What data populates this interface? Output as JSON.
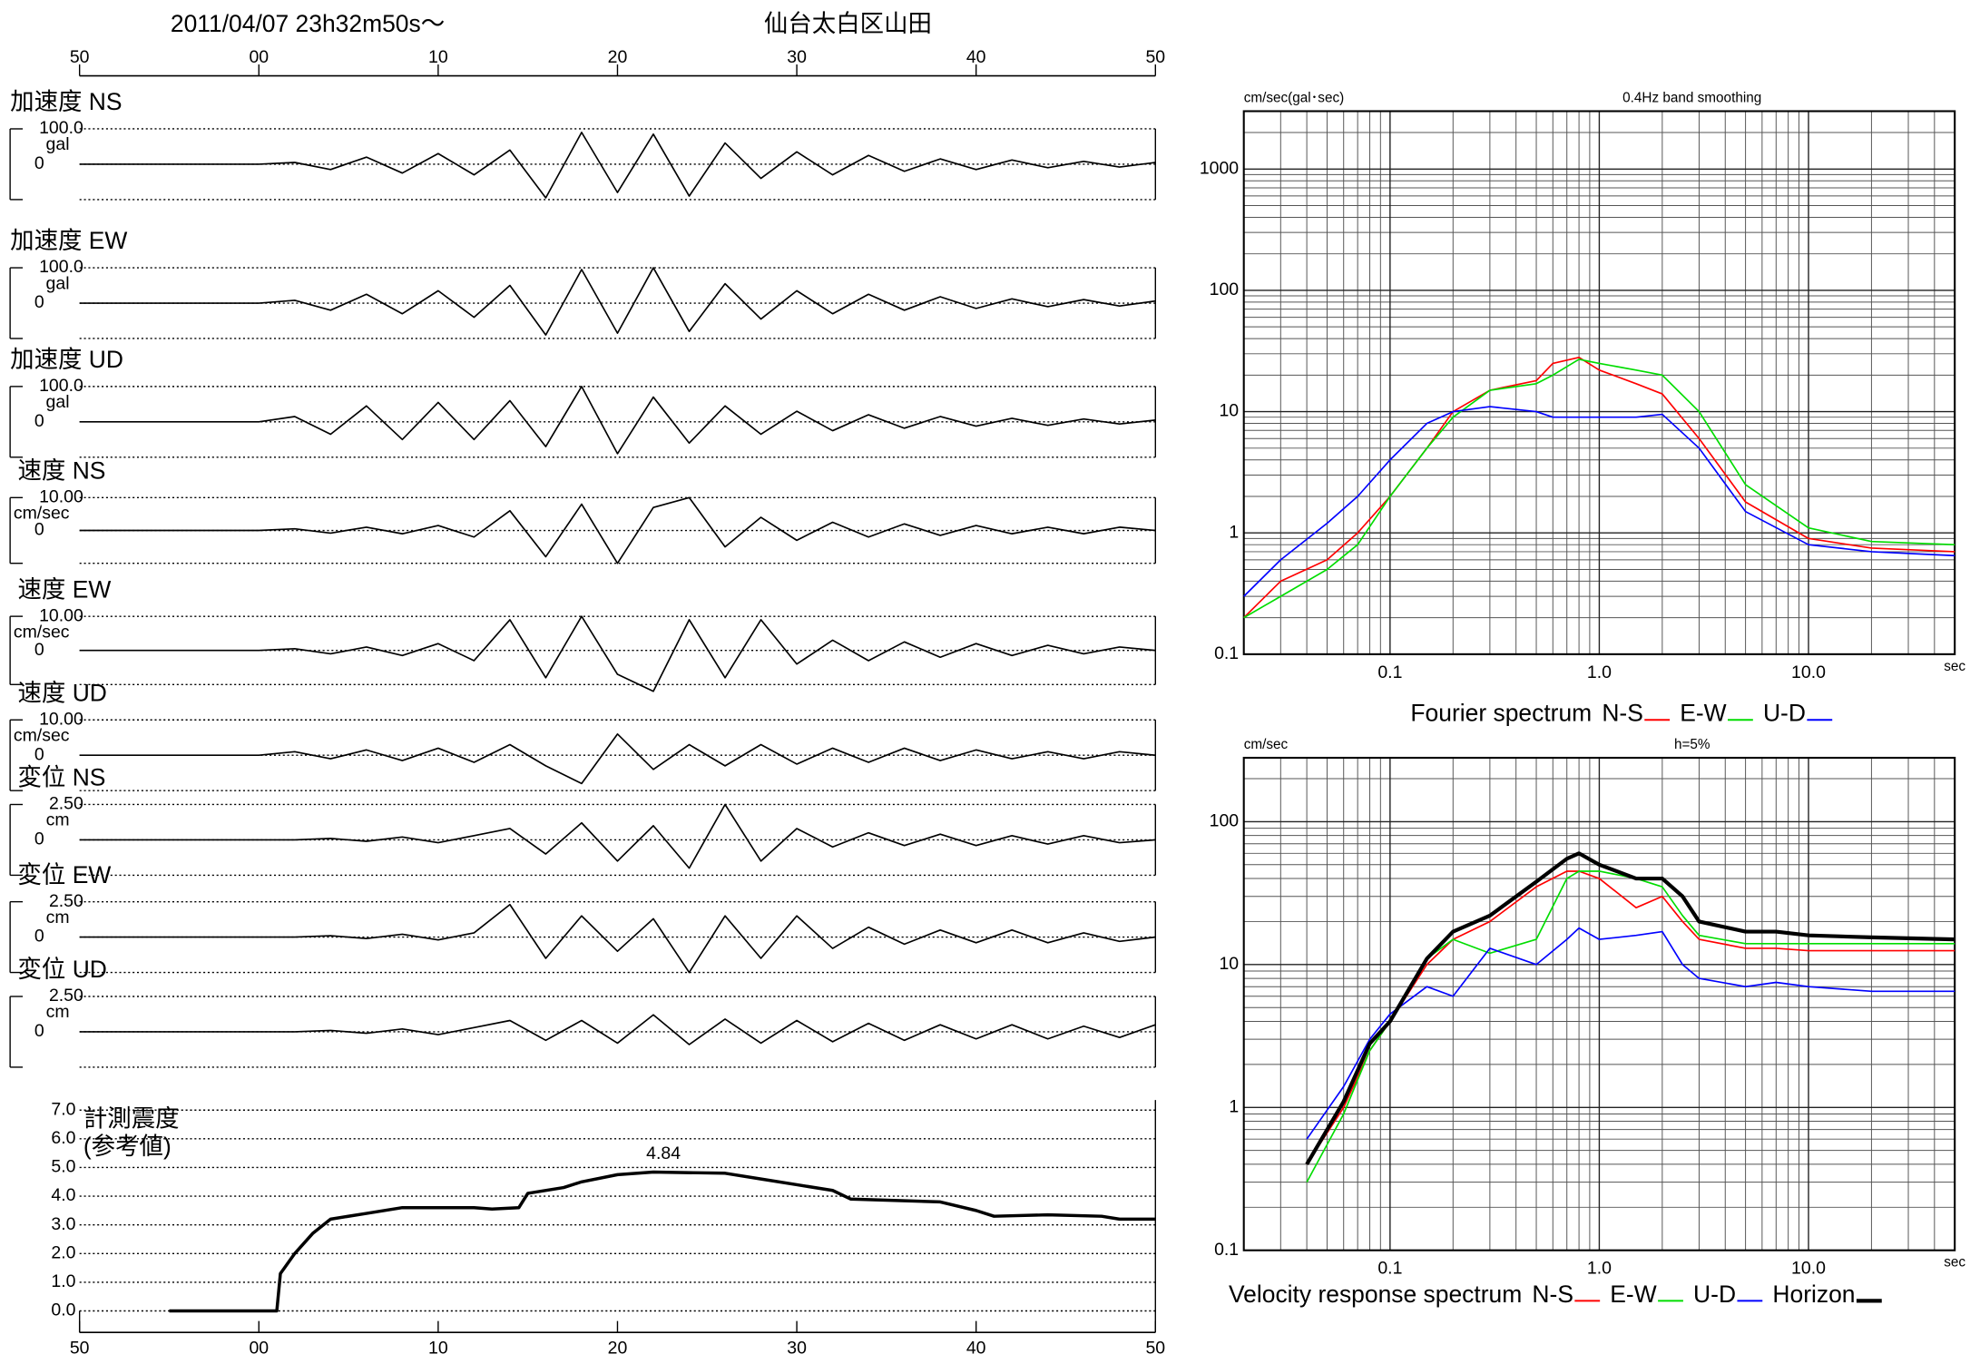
{
  "header": {
    "datetime": "2011/04/07  23h32m50s～",
    "station": "仙台太白区山田"
  },
  "chart_data": [
    {
      "type": "line",
      "title": "加速度 NS",
      "y_label": "gal",
      "xlim": [
        -10,
        50
      ],
      "xticks": [
        {
          "value": -10,
          "label": "50"
        },
        {
          "value": 0,
          "label": "00"
        },
        10,
        20,
        30,
        40,
        50
      ],
      "ylim": [
        -100,
        100
      ],
      "yticks": [
        {
          "value": 100,
          "label": "100.0"
        },
        0
      ],
      "color": "#000000",
      "x": [
        -10,
        -8,
        -6,
        -4,
        -2,
        0,
        2,
        4,
        6,
        8,
        10,
        12,
        14,
        16,
        18,
        20,
        22,
        24,
        26,
        28,
        30,
        32,
        34,
        36,
        38,
        40,
        42,
        44,
        46,
        48,
        50
      ],
      "values": [
        0,
        0,
        0,
        0,
        0,
        0,
        5,
        -15,
        20,
        -25,
        30,
        -30,
        40,
        -95,
        90,
        -80,
        85,
        -90,
        60,
        -40,
        35,
        -30,
        25,
        -20,
        15,
        -15,
        12,
        -10,
        8,
        -8,
        5
      ]
    },
    {
      "type": "line",
      "title": "加速度 EW",
      "y_label": "gal",
      "xlim": [
        -10,
        50
      ],
      "ylim": [
        -100,
        100
      ],
      "yticks": [
        {
          "value": 100,
          "label": "100.0"
        },
        0
      ],
      "color": "#000000",
      "x": [
        -10,
        -8,
        -6,
        -4,
        -2,
        0,
        2,
        4,
        6,
        8,
        10,
        12,
        14,
        16,
        18,
        20,
        22,
        24,
        26,
        28,
        30,
        32,
        34,
        36,
        38,
        40,
        42,
        44,
        46,
        48,
        50
      ],
      "values": [
        0,
        0,
        0,
        0,
        0,
        0,
        8,
        -20,
        25,
        -30,
        35,
        -40,
        50,
        -90,
        95,
        -85,
        100,
        -80,
        55,
        -45,
        35,
        -30,
        25,
        -20,
        18,
        -15,
        12,
        -10,
        10,
        -8,
        6
      ]
    },
    {
      "type": "line",
      "title": "加速度 UD",
      "y_label": "gal",
      "xlim": [
        -10,
        50
      ],
      "ylim": [
        -100,
        100
      ],
      "yticks": [
        {
          "value": 100,
          "label": "100.0"
        },
        0
      ],
      "color": "#000000",
      "x": [
        -10,
        -8,
        -6,
        -4,
        -2,
        0,
        2,
        4,
        6,
        8,
        10,
        12,
        14,
        16,
        18,
        20,
        22,
        24,
        26,
        28,
        30,
        32,
        34,
        36,
        38,
        40,
        42,
        44,
        46,
        48,
        50
      ],
      "values": [
        0,
        0,
        0,
        0,
        0,
        0,
        15,
        -35,
        45,
        -50,
        55,
        -50,
        60,
        -70,
        100,
        -90,
        70,
        -60,
        45,
        -35,
        30,
        -25,
        20,
        -18,
        15,
        -12,
        10,
        -10,
        8,
        -6,
        5
      ]
    },
    {
      "type": "line",
      "title": "速度 NS",
      "y_label": "cm/sec",
      "xlim": [
        -10,
        50
      ],
      "ylim": [
        -10,
        10
      ],
      "yticks": [
        {
          "value": 10,
          "label": "10.00"
        },
        0
      ],
      "color": "#000000",
      "x": [
        -10,
        -8,
        -6,
        -4,
        -2,
        0,
        2,
        4,
        6,
        8,
        10,
        12,
        14,
        16,
        18,
        20,
        22,
        24,
        26,
        28,
        30,
        32,
        34,
        36,
        38,
        40,
        42,
        44,
        46,
        48,
        50
      ],
      "values": [
        0,
        0,
        0,
        0,
        0,
        0,
        0.5,
        -0.8,
        1,
        -1,
        1.5,
        -2,
        6,
        -8,
        8,
        -10,
        7,
        10,
        -5,
        4,
        -3,
        2.5,
        -2,
        2,
        -1.5,
        1.5,
        -1,
        1,
        -1,
        1,
        0
      ]
    },
    {
      "type": "line",
      "title": "速度 EW",
      "y_label": "cm/sec",
      "xlim": [
        -10,
        50
      ],
      "ylim": [
        -10,
        10
      ],
      "yticks": [
        {
          "value": 10,
          "label": "10.00"
        },
        0
      ],
      "color": "#000000",
      "x": [
        -10,
        -8,
        -6,
        -4,
        -2,
        0,
        2,
        4,
        6,
        8,
        10,
        12,
        14,
        16,
        18,
        20,
        22,
        24,
        26,
        28,
        30,
        32,
        34,
        36,
        38,
        40,
        42,
        44,
        46,
        48,
        50
      ],
      "values": [
        0,
        0,
        0,
        0,
        0,
        0,
        0.5,
        -1,
        1,
        -1.5,
        2,
        -3,
        9,
        -8,
        10,
        -7,
        -12,
        9,
        -8,
        9,
        -4,
        3,
        -3,
        2.5,
        -2,
        2,
        -1.5,
        1.5,
        -1,
        1,
        0
      ]
    },
    {
      "type": "line",
      "title": "速度 UD",
      "y_label": "cm/sec",
      "xlim": [
        -10,
        50
      ],
      "ylim": [
        -10,
        10
      ],
      "yticks": [
        {
          "value": 10,
          "label": "10.00"
        },
        0
      ],
      "color": "#000000",
      "x": [
        -10,
        -8,
        -6,
        -4,
        -2,
        0,
        2,
        4,
        6,
        8,
        10,
        12,
        14,
        16,
        18,
        20,
        22,
        24,
        26,
        28,
        30,
        32,
        34,
        36,
        38,
        40,
        42,
        44,
        46,
        48,
        50
      ],
      "values": [
        0,
        0,
        0,
        0,
        0,
        0,
        1,
        -1,
        1.5,
        -1.5,
        2,
        -2,
        3,
        -3,
        -8,
        6,
        -4,
        3,
        -3,
        3,
        -2.5,
        2,
        -2,
        2,
        -1.5,
        1.5,
        -1,
        1,
        -1,
        1,
        0
      ]
    },
    {
      "type": "line",
      "title": "変位 NS",
      "y_label": "cm",
      "xlim": [
        -10,
        50
      ],
      "ylim": [
        -2.5,
        2.5
      ],
      "yticks": [
        {
          "value": 2.5,
          "label": "2.50"
        },
        0
      ],
      "color": "#000000",
      "x": [
        -10,
        -8,
        -6,
        -4,
        -2,
        0,
        2,
        4,
        6,
        8,
        10,
        12,
        14,
        16,
        18,
        20,
        22,
        24,
        26,
        28,
        30,
        32,
        34,
        36,
        38,
        40,
        42,
        44,
        46,
        48,
        50
      ],
      "values": [
        0,
        0,
        0,
        0,
        0,
        0,
        0,
        0.1,
        -0.1,
        0.2,
        -0.2,
        0.3,
        0.8,
        -1,
        1.2,
        -1.5,
        1,
        -2,
        2.5,
        -1.5,
        0.8,
        -0.5,
        0.5,
        -0.4,
        0.4,
        -0.4,
        0.3,
        -0.3,
        0.3,
        -0.2,
        0
      ]
    },
    {
      "type": "line",
      "title": "変位 EW",
      "y_label": "cm",
      "xlim": [
        -10,
        50
      ],
      "ylim": [
        -2.5,
        2.5
      ],
      "yticks": [
        {
          "value": 2.5,
          "label": "2.50"
        },
        0
      ],
      "color": "#000000",
      "x": [
        -10,
        -8,
        -6,
        -4,
        -2,
        0,
        2,
        4,
        6,
        8,
        10,
        12,
        14,
        16,
        18,
        20,
        22,
        24,
        26,
        28,
        30,
        32,
        34,
        36,
        38,
        40,
        42,
        44,
        46,
        48,
        50
      ],
      "values": [
        0,
        0,
        0,
        0,
        0,
        0,
        0,
        0.1,
        -0.1,
        0.2,
        -0.2,
        0.3,
        2.3,
        -1.5,
        1.5,
        -1,
        1.3,
        -2.5,
        1.5,
        -1.5,
        1.5,
        -0.8,
        0.7,
        -0.5,
        0.5,
        -0.4,
        0.5,
        -0.4,
        0.3,
        -0.3,
        0
      ]
    },
    {
      "type": "line",
      "title": "変位 UD",
      "y_label": "cm",
      "xlim": [
        -10,
        50
      ],
      "ylim": [
        -2.5,
        2.5
      ],
      "yticks": [
        {
          "value": 2.5,
          "label": "2.50"
        },
        0
      ],
      "color": "#000000",
      "x": [
        -10,
        -8,
        -6,
        -4,
        -2,
        0,
        2,
        4,
        6,
        8,
        10,
        12,
        14,
        16,
        18,
        20,
        22,
        24,
        26,
        28,
        30,
        32,
        34,
        36,
        38,
        40,
        42,
        44,
        46,
        48,
        50
      ],
      "values": [
        0,
        0,
        0,
        0,
        0,
        0,
        0,
        0.1,
        -0.1,
        0.2,
        -0.2,
        0.3,
        0.8,
        -0.6,
        0.8,
        -0.8,
        1.2,
        -0.9,
        0.9,
        -0.8,
        0.8,
        -0.7,
        0.6,
        -0.6,
        0.5,
        -0.5,
        0.5,
        -0.5,
        0.4,
        -0.4,
        0.5
      ]
    },
    {
      "type": "line",
      "title": "計測震度",
      "subtitle": "(参考値)",
      "xlim": [
        -10,
        50
      ],
      "xticks": [
        {
          "value": -10,
          "label": "50"
        },
        {
          "value": 0,
          "label": "00"
        },
        10,
        20,
        30,
        40,
        50
      ],
      "ylim": [
        0,
        7
      ],
      "yticks": [
        {
          "value": 0,
          "label": "0.0"
        },
        {
          "value": 1,
          "label": "1.0"
        },
        {
          "value": 2,
          "label": "2.0"
        },
        {
          "value": 3,
          "label": "3.0"
        },
        {
          "value": 4,
          "label": "4.0"
        },
        {
          "value": 5,
          "label": "5.0"
        },
        {
          "value": 6,
          "label": "6.0"
        },
        {
          "value": 7,
          "label": "7.0"
        }
      ],
      "grid": true,
      "color": "#000000",
      "line_width": 2.5,
      "x": [
        -5,
        1,
        1.2,
        2,
        3,
        4,
        6,
        8,
        12,
        13,
        14.5,
        15,
        17,
        18,
        20,
        22,
        26,
        28,
        30,
        32,
        33,
        38,
        40,
        41,
        44,
        47,
        48,
        50
      ],
      "values": [
        0,
        0,
        1.3,
        2.0,
        2.7,
        3.2,
        3.4,
        3.6,
        3.6,
        3.55,
        3.6,
        4.1,
        4.3,
        4.5,
        4.75,
        4.84,
        4.8,
        4.6,
        4.4,
        4.2,
        3.9,
        3.8,
        3.5,
        3.3,
        3.35,
        3.3,
        3.2,
        3.2
      ],
      "peak_x": 22,
      "peak_value": 4.84
    },
    {
      "type": "line",
      "log_x": true,
      "log_y": true,
      "grid": true,
      "y_label": "cm/sec(gal･sec)",
      "subtitle": "0.4Hz band smoothing",
      "x_label": "sec",
      "legend_title": "Fourier spectrum",
      "xlim": [
        0.02,
        50
      ],
      "ylim": [
        0.1,
        3000
      ],
      "xticks": [
        0.1,
        {
          "value": 1,
          "label": "1.0"
        },
        {
          "value": 10,
          "label": "10.0"
        }
      ],
      "yticks": [
        0.1,
        1,
        10,
        100,
        1000
      ],
      "x": [
        0.02,
        0.03,
        0.05,
        0.07,
        0.1,
        0.15,
        0.2,
        0.3,
        0.5,
        0.6,
        0.8,
        1,
        1.5,
        2,
        3,
        5,
        10,
        20,
        50
      ],
      "series": [
        {
          "name": "N-S",
          "color": "#ff0000",
          "values": [
            0.2,
            0.4,
            0.6,
            1,
            2,
            5,
            10,
            15,
            18,
            25,
            28,
            22,
            17,
            14,
            6,
            1.8,
            0.9,
            0.75,
            0.7
          ]
        },
        {
          "name": "E-W",
          "color": "#00dd00",
          "values": [
            0.2,
            0.3,
            0.5,
            0.8,
            2,
            5,
            9,
            15,
            17,
            20,
            27,
            25,
            22,
            20,
            10,
            2.5,
            1.1,
            0.85,
            0.8
          ]
        },
        {
          "name": "U-D",
          "color": "#0000ff",
          "values": [
            0.3,
            0.6,
            1.2,
            2,
            4,
            8,
            10,
            11,
            10,
            9,
            9,
            9,
            9,
            9.5,
            5,
            1.5,
            0.8,
            0.7,
            0.65
          ]
        }
      ]
    },
    {
      "type": "line",
      "log_x": true,
      "log_y": true,
      "grid": true,
      "y_label": "cm/sec",
      "subtitle": "h=5%",
      "x_label": "sec",
      "legend_title": "Velocity response spectrum",
      "xlim": [
        0.02,
        50
      ],
      "ylim": [
        0.1,
        280
      ],
      "xticks": [
        0.1,
        {
          "value": 1,
          "label": "1.0"
        },
        {
          "value": 10,
          "label": "10.0"
        }
      ],
      "yticks": [
        0.1,
        1,
        10,
        100
      ],
      "x": [
        0.04,
        0.06,
        0.08,
        0.1,
        0.15,
        0.2,
        0.3,
        0.5,
        0.7,
        0.8,
        1,
        1.5,
        2,
        2.5,
        3,
        5,
        7,
        10,
        20,
        50
      ],
      "series": [
        {
          "name": "N-S",
          "color": "#ff0000",
          "values": [
            0.4,
            1,
            2.5,
            4,
            10,
            15,
            20,
            35,
            45,
            45,
            40,
            25,
            30,
            20,
            15,
            13,
            13,
            12.5,
            12.5,
            12.5
          ]
        },
        {
          "name": "E-W",
          "color": "#00dd00",
          "values": [
            0.3,
            0.9,
            2.5,
            4,
            11,
            15,
            12,
            15,
            40,
            45,
            45,
            40,
            35,
            22,
            16,
            14,
            14,
            14,
            14,
            14
          ]
        },
        {
          "name": "U-D",
          "color": "#0000ff",
          "values": [
            0.6,
            1.4,
            3,
            4.5,
            7,
            6,
            13,
            10,
            15,
            18,
            15,
            16,
            17,
            10,
            8,
            7,
            7.5,
            7,
            6.5,
            6.5
          ]
        },
        {
          "name": "Horizon",
          "color": "#000000",
          "line_width": 3,
          "values": [
            0.4,
            1.1,
            2.8,
            4,
            11,
            17,
            22,
            38,
            55,
            60,
            50,
            40,
            40,
            30,
            20,
            17,
            17,
            16,
            15.5,
            15
          ]
        }
      ]
    }
  ]
}
